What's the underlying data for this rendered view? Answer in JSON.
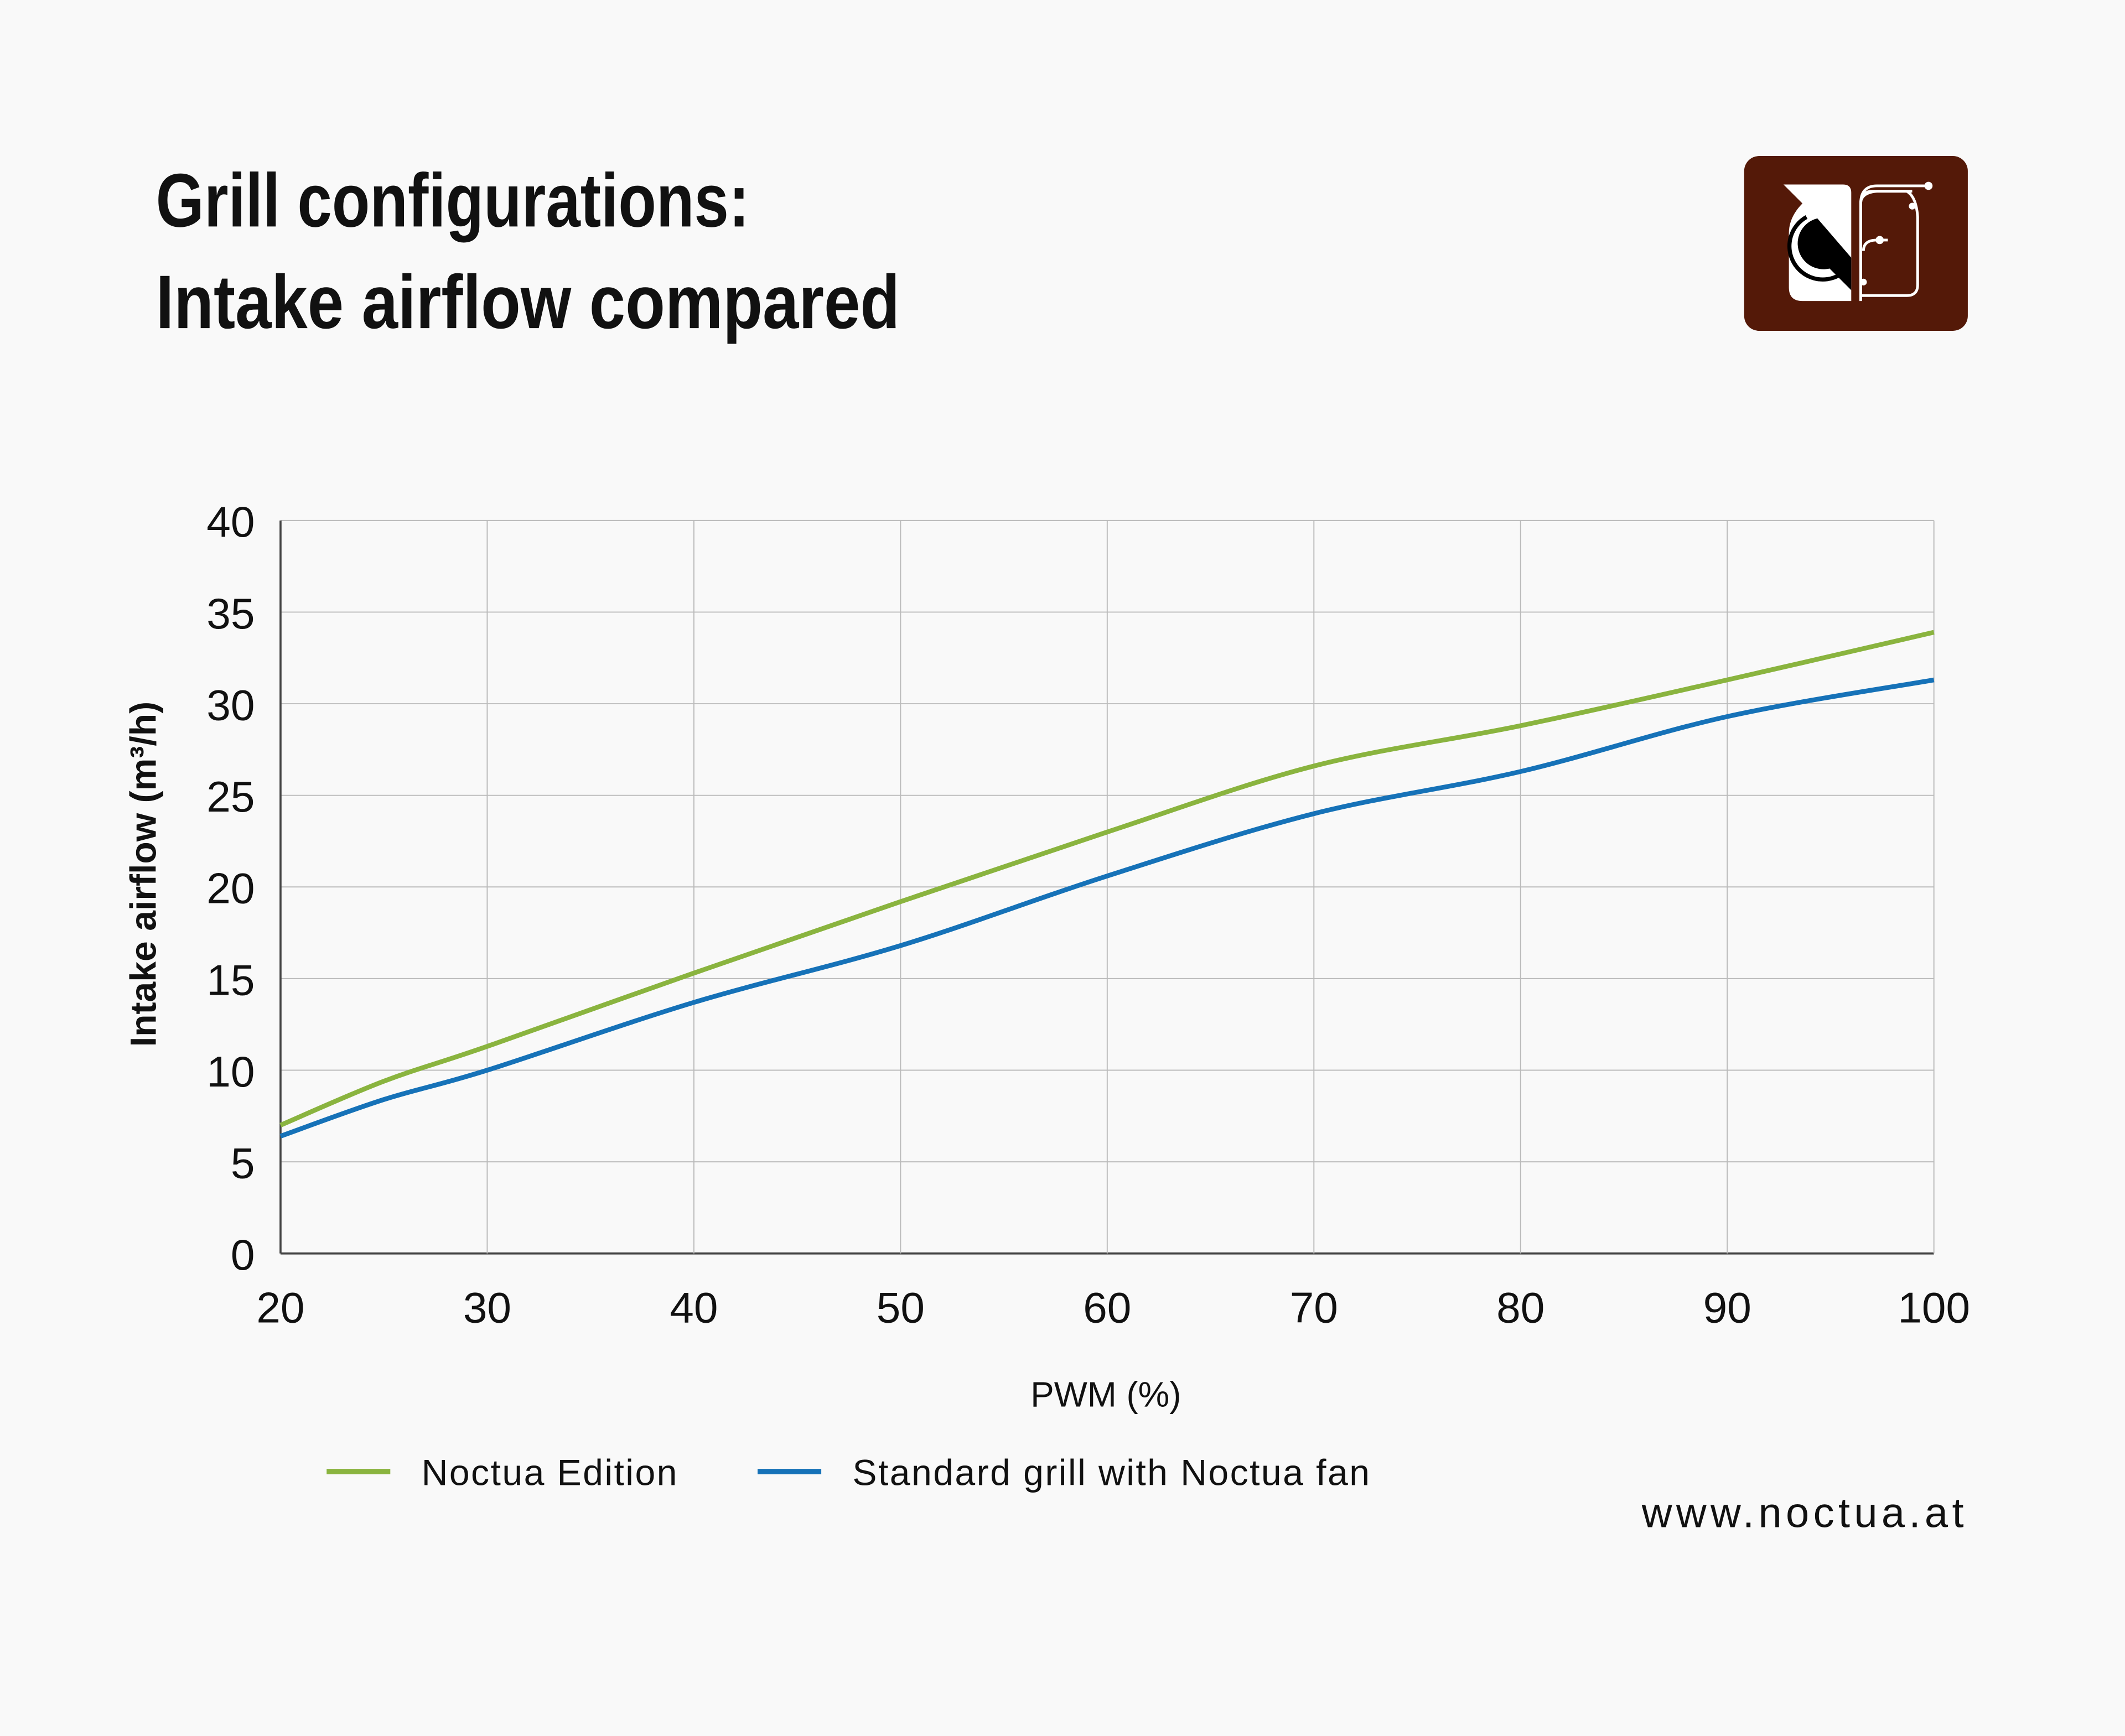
{
  "title_lines": [
    "Grill configurations:",
    "Intake airflow compared"
  ],
  "website": "www.noctua.at",
  "logo": {
    "name": "noctua-owl-logo",
    "color": "#541908"
  },
  "chart_data": {
    "type": "line",
    "title": "Grill configurations: Intake airflow compared",
    "xlabel": "PWM (%)",
    "ylabel": "Intake airflow (m³/h)",
    "xlim": [
      20,
      100
    ],
    "ylim": [
      0,
      40
    ],
    "xticks": [
      20,
      30,
      40,
      50,
      60,
      70,
      80,
      90,
      100
    ],
    "yticks": [
      0,
      5,
      10,
      15,
      20,
      25,
      30,
      35,
      40
    ],
    "grid": true,
    "legend_position": "bottom",
    "x": [
      20,
      25,
      30,
      40,
      50,
      60,
      70,
      80,
      90,
      100
    ],
    "series": [
      {
        "name": "Noctua Edition",
        "color": "#8ab43f",
        "values": [
          7.0,
          9.4,
          11.3,
          15.3,
          19.2,
          23.0,
          26.6,
          28.8,
          31.3,
          33.9
        ]
      },
      {
        "name": "Standard grill with Noctua fan",
        "color": "#1672b8",
        "values": [
          6.4,
          8.4,
          10.0,
          13.7,
          16.8,
          20.6,
          24.0,
          26.3,
          29.3,
          31.3
        ]
      }
    ]
  }
}
